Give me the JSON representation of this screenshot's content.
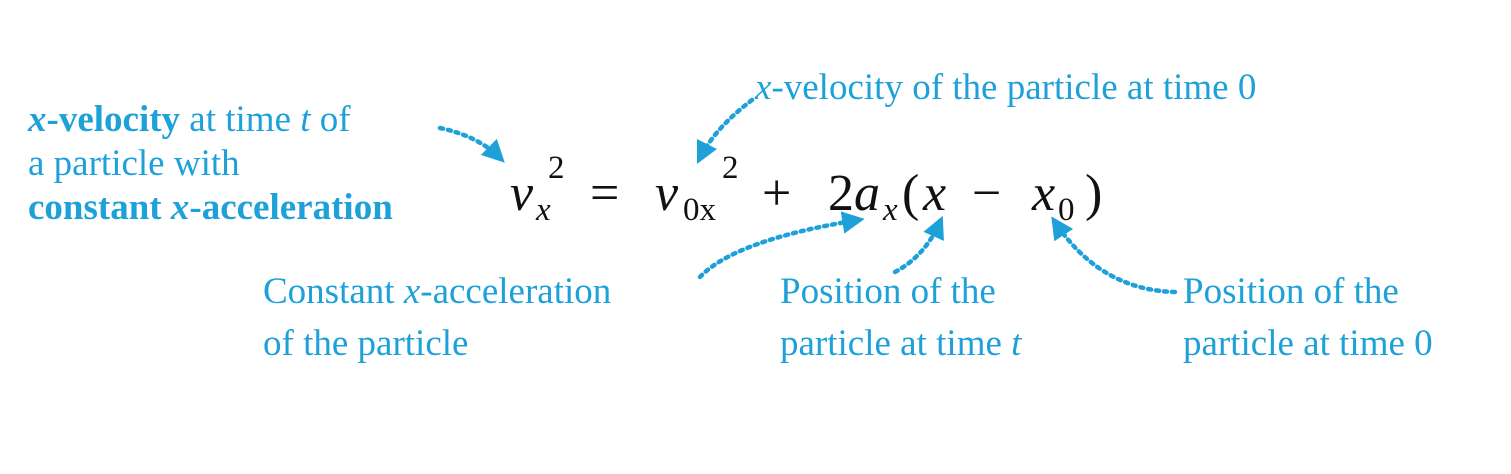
{
  "colors": {
    "annotation": "#1ea0d8",
    "equation": "#111111",
    "background": "#ffffff"
  },
  "labels": {
    "xvel_t": {
      "l1_bold_var": "x",
      "l1_bold_word": "-velocity",
      "l1_text": " at time ",
      "l1_var": "t",
      "l1_tail": " of",
      "l2": "a particle with",
      "l3_bold_a": "constant ",
      "l3_bold_var": "x",
      "l3_bold_b": "-acceleration"
    },
    "xvel_0": {
      "var": "x",
      "text": "-velocity of the particle at time 0"
    },
    "accel": {
      "l1_a": "Constant ",
      "l1_var": "x",
      "l1_b": "-acceleration",
      "l2": "of the particle"
    },
    "pos_t": {
      "l1": "Position of the",
      "l2_text": "particle at time ",
      "l2_var": "t"
    },
    "pos_0": {
      "l1": "Position of the",
      "l2": "particle at time 0"
    }
  },
  "equation": {
    "v1": "v",
    "v1_sub": "x",
    "v1_sup": "2",
    "eq": "=",
    "v2": "v",
    "v2_sub": "0x",
    "v2_sup": "2",
    "plus": "+",
    "two": "2",
    "a": "a",
    "a_sub": "x",
    "lparen": "(",
    "x": "x",
    "minus": "−",
    "x0": "x",
    "x0_sub": "0",
    "rparen": ")"
  },
  "arrows": [
    {
      "name": "arrow-xvel-t"
    },
    {
      "name": "arrow-xvel-0"
    },
    {
      "name": "arrow-accel"
    },
    {
      "name": "arrow-pos-t"
    },
    {
      "name": "arrow-pos-0"
    }
  ]
}
